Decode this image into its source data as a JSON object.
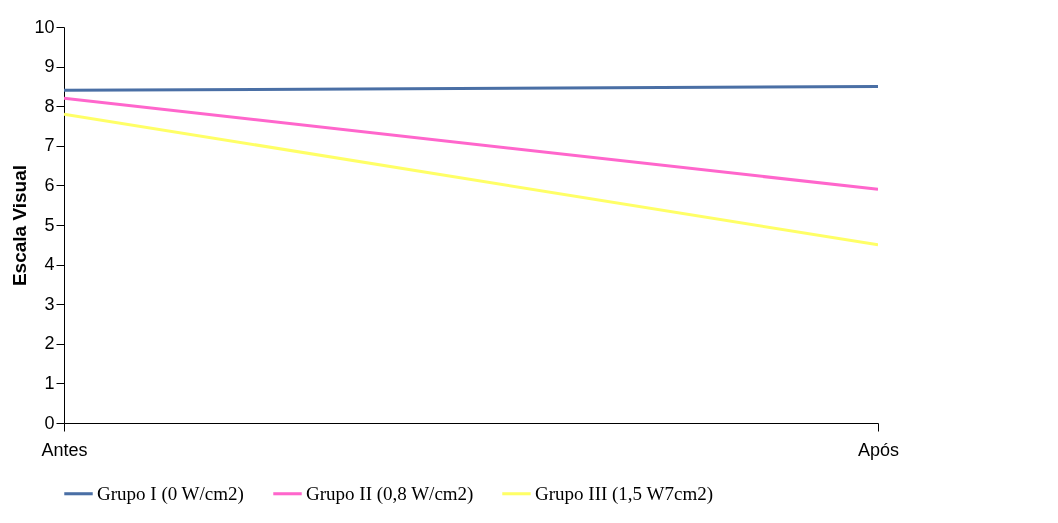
{
  "chart_data": {
    "type": "line",
    "ylabel": "Escala Visual",
    "categories": [
      "Antes",
      "Após"
    ],
    "series": [
      {
        "name": "Grupo I (0 W/cm2)",
        "color": "#4a6fa5",
        "values": [
          8.4,
          8.5
        ]
      },
      {
        "name": "Grupo II (0,8 W/cm2)",
        "color": "#ff66cc",
        "values": [
          8.2,
          5.9
        ]
      },
      {
        "name": "Grupo III (1,5 W7cm2)",
        "color": "#ffff66",
        "values": [
          7.8,
          4.5
        ]
      }
    ],
    "ylim": [
      0,
      10
    ],
    "yticks": [
      0,
      1,
      2,
      3,
      4,
      5,
      6,
      7,
      8,
      9,
      10
    ],
    "grid": false,
    "legend": "bottom",
    "marker": "none",
    "line_style": "solid"
  }
}
